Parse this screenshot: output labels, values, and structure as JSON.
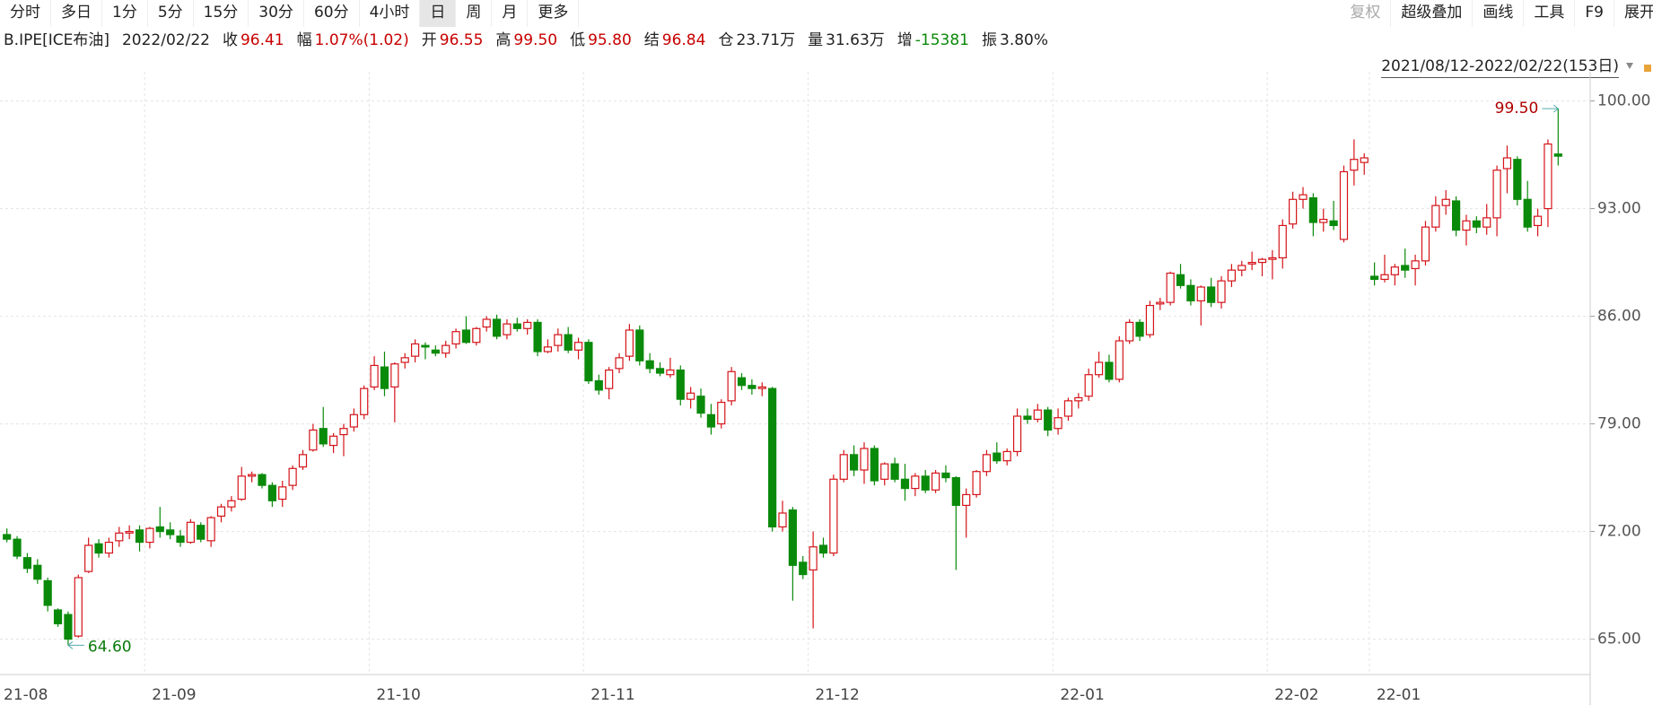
{
  "toolbar": {
    "left": [
      {
        "label": "分时"
      },
      {
        "label": "多日"
      },
      {
        "label": "1分"
      },
      {
        "label": "5分"
      },
      {
        "label": "15分"
      },
      {
        "label": "30分"
      },
      {
        "label": "60分"
      },
      {
        "label": "4小时"
      },
      {
        "label": "日",
        "active": true
      },
      {
        "label": "周"
      },
      {
        "label": "月"
      },
      {
        "label": "更多"
      }
    ],
    "right": [
      {
        "label": "复权",
        "disabled": true
      },
      {
        "label": "超级叠加"
      },
      {
        "label": "画线"
      },
      {
        "label": "工具"
      },
      {
        "label": "F9"
      },
      {
        "label": "展开"
      }
    ]
  },
  "quote": {
    "symbol": "B.IPE[ICE布油]",
    "date": "2022/02/22",
    "fields": [
      {
        "label": "收",
        "value": "96.41",
        "color": "#c80000"
      },
      {
        "label": "幅",
        "value": "1.07%(1.02)",
        "color": "#c80000"
      },
      {
        "label": "开",
        "value": "96.55",
        "color": "#c80000"
      },
      {
        "label": "高",
        "value": "99.50",
        "color": "#c80000"
      },
      {
        "label": "低",
        "value": "95.80",
        "color": "#c80000"
      },
      {
        "label": "结",
        "value": "96.84",
        "color": "#c80000"
      },
      {
        "label": "仓",
        "value": "23.71万",
        "color": "#222222"
      },
      {
        "label": "量",
        "value": "31.63万",
        "color": "#222222"
      },
      {
        "label": "增",
        "value": "-15381",
        "color": "#0a8a0a"
      },
      {
        "label": "振",
        "value": "3.80%",
        "color": "#222222"
      }
    ]
  },
  "range_label": "2021/08/12-2022/02/22(153日)",
  "chart_data": {
    "type": "candlestick",
    "grid": true,
    "up_color": "#d4141a",
    "down_color": "#0a8a0a",
    "ylim": [
      62.7,
      101.2
    ],
    "yticks": [
      {
        "value": 65,
        "label": "65.00"
      },
      {
        "value": 72,
        "label": "72.00"
      },
      {
        "value": 79,
        "label": "79.00"
      },
      {
        "value": 86,
        "label": "86.00"
      },
      {
        "value": 93,
        "label": "93.00"
      },
      {
        "value": 100,
        "label": "100.00"
      }
    ],
    "annotations": [
      {
        "label": "99.50",
        "value": 99.5
      },
      {
        "label": "64.60",
        "value": 64.6
      }
    ],
    "categories": [
      "21-08",
      null,
      null,
      null,
      null,
      null,
      null,
      null,
      null,
      null,
      null,
      null,
      null,
      null,
      "21-09",
      null,
      null,
      null,
      null,
      null,
      null,
      null,
      null,
      null,
      null,
      null,
      null,
      null,
      null,
      null,
      null,
      null,
      null,
      null,
      null,
      null,
      "21-10",
      null,
      null,
      null,
      null,
      null,
      null,
      null,
      null,
      null,
      null,
      null,
      null,
      null,
      null,
      null,
      null,
      null,
      null,
      null,
      null,
      "21-11",
      null,
      null,
      null,
      null,
      null,
      null,
      null,
      null,
      null,
      null,
      null,
      null,
      null,
      null,
      null,
      null,
      null,
      null,
      null,
      null,
      null,
      "21-12",
      null,
      null,
      null,
      null,
      null,
      null,
      null,
      null,
      null,
      null,
      null,
      null,
      null,
      null,
      null,
      null,
      null,
      null,
      null,
      null,
      null,
      null,
      null,
      "22-01",
      null,
      null,
      null,
      null,
      null,
      null,
      null,
      null,
      null,
      null,
      null,
      null,
      null,
      null,
      null,
      null,
      null,
      null,
      null,
      null,
      "22-02",
      null,
      null,
      null,
      null,
      null,
      null,
      null,
      null,
      null,
      "22-01",
      null,
      null,
      null,
      null,
      null,
      null,
      null,
      null,
      null,
      null,
      null,
      null,
      null,
      null,
      null,
      null,
      null,
      null
    ],
    "candles": [
      [
        71.8,
        72.2,
        71.3,
        71.5
      ],
      [
        71.5,
        71.7,
        70.2,
        70.4
      ],
      [
        70.3,
        70.6,
        69.3,
        69.6
      ],
      [
        69.8,
        70.2,
        68.6,
        68.9
      ],
      [
        68.8,
        69.0,
        66.8,
        67.2
      ],
      [
        66.9,
        67.0,
        65.8,
        66.0
      ],
      [
        66.6,
        66.8,
        64.6,
        65.0
      ],
      [
        65.2,
        69.2,
        65.1,
        69.0
      ],
      [
        69.4,
        71.6,
        69.3,
        71.1
      ],
      [
        71.2,
        71.5,
        70.3,
        70.6
      ],
      [
        70.6,
        71.6,
        70.3,
        71.3
      ],
      [
        71.4,
        72.3,
        71.0,
        71.9
      ],
      [
        71.9,
        72.4,
        71.5,
        72.0
      ],
      [
        72.1,
        72.4,
        70.7,
        71.3
      ],
      [
        71.3,
        72.3,
        70.9,
        72.2
      ],
      [
        72.3,
        73.6,
        71.6,
        72.0
      ],
      [
        72.1,
        72.6,
        71.5,
        71.8
      ],
      [
        71.7,
        72.1,
        71.0,
        71.3
      ],
      [
        71.3,
        72.8,
        71.2,
        72.6
      ],
      [
        72.4,
        72.6,
        71.3,
        71.5
      ],
      [
        71.4,
        73.0,
        71.0,
        72.9
      ],
      [
        73.0,
        73.8,
        72.6,
        73.6
      ],
      [
        73.6,
        74.3,
        73.3,
        74.0
      ],
      [
        74.1,
        76.2,
        74.0,
        75.6
      ],
      [
        75.6,
        75.9,
        75.2,
        75.7
      ],
      [
        75.7,
        75.8,
        74.8,
        75.0
      ],
      [
        75.0,
        75.2,
        73.6,
        74.0
      ],
      [
        74.1,
        75.3,
        73.6,
        74.9
      ],
      [
        75.0,
        76.3,
        74.7,
        76.1
      ],
      [
        76.2,
        77.3,
        76.0,
        77.0
      ],
      [
        77.3,
        79.0,
        77.2,
        78.6
      ],
      [
        78.7,
        80.1,
        77.5,
        77.7
      ],
      [
        77.6,
        78.4,
        77.1,
        78.2
      ],
      [
        78.3,
        79.0,
        76.9,
        78.7
      ],
      [
        78.8,
        80.0,
        78.5,
        79.6
      ],
      [
        79.6,
        81.5,
        79.3,
        81.3
      ],
      [
        81.4,
        83.4,
        81.2,
        82.8
      ],
      [
        82.7,
        83.7,
        80.8,
        81.3
      ],
      [
        81.4,
        83.0,
        79.1,
        82.9
      ],
      [
        83.0,
        83.6,
        82.6,
        83.3
      ],
      [
        83.4,
        84.5,
        83.0,
        84.2
      ],
      [
        84.1,
        84.3,
        83.2,
        84.0
      ],
      [
        83.8,
        84.1,
        83.4,
        83.6
      ],
      [
        83.6,
        84.4,
        83.3,
        84.1
      ],
      [
        84.2,
        85.2,
        83.9,
        85.0
      ],
      [
        85.1,
        86.0,
        84.2,
        84.3
      ],
      [
        84.3,
        85.3,
        84.1,
        85.2
      ],
      [
        85.3,
        86.0,
        85.0,
        85.8
      ],
      [
        85.8,
        86.1,
        84.5,
        84.7
      ],
      [
        84.8,
        85.8,
        84.5,
        85.5
      ],
      [
        85.5,
        85.9,
        85.0,
        85.2
      ],
      [
        85.2,
        85.8,
        84.8,
        85.6
      ],
      [
        85.6,
        85.8,
        83.4,
        83.7
      ],
      [
        83.7,
        84.5,
        83.6,
        84.0
      ],
      [
        84.1,
        85.2,
        83.7,
        84.8
      ],
      [
        84.8,
        85.3,
        83.6,
        83.8
      ],
      [
        83.8,
        84.6,
        83.2,
        84.3
      ],
      [
        84.3,
        84.5,
        81.6,
        81.8
      ],
      [
        81.8,
        82.2,
        80.9,
        81.2
      ],
      [
        81.3,
        82.7,
        80.6,
        82.5
      ],
      [
        82.6,
        83.6,
        82.3,
        83.3
      ],
      [
        83.4,
        85.5,
        83.1,
        85.1
      ],
      [
        85.1,
        85.4,
        82.8,
        83.1
      ],
      [
        83.1,
        83.6,
        82.3,
        82.6
      ],
      [
        82.6,
        83.0,
        82.1,
        82.3
      ],
      [
        82.2,
        83.3,
        82.0,
        82.5
      ],
      [
        82.5,
        82.8,
        80.2,
        80.6
      ],
      [
        80.6,
        81.4,
        80.0,
        81.0
      ],
      [
        80.8,
        81.3,
        79.4,
        79.7
      ],
      [
        79.6,
        80.3,
        78.3,
        78.8
      ],
      [
        79.0,
        80.6,
        78.7,
        80.4
      ],
      [
        80.5,
        82.7,
        80.2,
        82.4
      ],
      [
        82.0,
        82.3,
        81.2,
        81.5
      ],
      [
        81.5,
        81.9,
        80.9,
        81.3
      ],
      [
        81.3,
        81.7,
        80.8,
        81.4
      ],
      [
        81.3,
        81.4,
        72.0,
        72.3
      ],
      [
        72.3,
        74.0,
        72.0,
        73.2
      ],
      [
        73.4,
        73.6,
        67.5,
        69.8
      ],
      [
        70.0,
        70.4,
        68.9,
        69.2
      ],
      [
        69.5,
        72.0,
        65.7,
        71.0
      ],
      [
        71.1,
        71.6,
        70.3,
        70.6
      ],
      [
        70.6,
        75.7,
        70.4,
        75.4
      ],
      [
        75.4,
        77.3,
        75.2,
        77.0
      ],
      [
        77.0,
        77.6,
        75.6,
        76.0
      ],
      [
        76.0,
        77.8,
        75.1,
        77.4
      ],
      [
        77.4,
        77.6,
        75.0,
        75.3
      ],
      [
        75.4,
        76.5,
        75.0,
        76.4
      ],
      [
        76.4,
        76.8,
        75.2,
        75.4
      ],
      [
        75.4,
        76.4,
        74.0,
        74.8
      ],
      [
        74.8,
        75.8,
        74.3,
        75.6
      ],
      [
        75.6,
        76.0,
        74.5,
        74.7
      ],
      [
        74.7,
        76.0,
        74.5,
        75.8
      ],
      [
        75.8,
        76.3,
        75.2,
        75.5
      ],
      [
        75.5,
        75.6,
        69.5,
        73.7
      ],
      [
        73.7,
        74.8,
        71.6,
        74.4
      ],
      [
        74.4,
        76.0,
        74.2,
        75.9
      ],
      [
        75.9,
        77.3,
        75.6,
        77.0
      ],
      [
        77.1,
        77.8,
        76.4,
        76.6
      ],
      [
        76.6,
        77.4,
        76.3,
        77.2
      ],
      [
        77.2,
        80.0,
        76.9,
        79.5
      ],
      [
        79.5,
        80.0,
        79.0,
        79.3
      ],
      [
        79.3,
        80.3,
        79.1,
        79.9
      ],
      [
        79.9,
        80.1,
        78.2,
        78.6
      ],
      [
        78.7,
        80.0,
        78.3,
        79.4
      ],
      [
        79.5,
        80.7,
        79.2,
        80.5
      ],
      [
        80.5,
        81.0,
        80.0,
        80.7
      ],
      [
        80.8,
        82.6,
        80.5,
        82.2
      ],
      [
        82.2,
        83.7,
        82.0,
        83.0
      ],
      [
        83.0,
        83.5,
        81.7,
        81.9
      ],
      [
        81.9,
        84.7,
        81.7,
        84.4
      ],
      [
        84.4,
        85.8,
        84.2,
        85.6
      ],
      [
        85.6,
        85.8,
        84.4,
        84.7
      ],
      [
        84.8,
        87.0,
        84.6,
        86.7
      ],
      [
        86.8,
        87.2,
        86.4,
        86.9
      ],
      [
        86.9,
        88.9,
        86.7,
        88.8
      ],
      [
        88.7,
        89.4,
        87.8,
        88.0
      ],
      [
        88.0,
        88.4,
        86.7,
        87.0
      ],
      [
        87.0,
        88.0,
        85.4,
        87.9
      ],
      [
        87.9,
        88.5,
        86.6,
        86.9
      ],
      [
        86.9,
        88.6,
        86.5,
        88.3
      ],
      [
        88.3,
        89.4,
        87.9,
        89.0
      ],
      [
        89.0,
        89.6,
        88.6,
        89.3
      ],
      [
        89.4,
        90.2,
        89.0,
        89.5
      ],
      [
        89.5,
        89.8,
        88.6,
        89.7
      ],
      [
        89.7,
        90.3,
        88.4,
        89.8
      ],
      [
        89.8,
        92.3,
        89.1,
        91.9
      ],
      [
        92.0,
        94.1,
        91.7,
        93.6
      ],
      [
        93.6,
        94.4,
        93.0,
        93.9
      ],
      [
        93.7,
        94.0,
        91.2,
        92.1
      ],
      [
        92.1,
        93.0,
        91.5,
        92.3
      ],
      [
        92.2,
        93.5,
        91.6,
        91.9
      ],
      [
        91.0,
        95.8,
        90.8,
        95.4
      ],
      [
        95.5,
        97.5,
        94.5,
        96.2
      ],
      [
        96.0,
        96.6,
        95.2,
        96.3
      ],
      [
        88.6,
        89.5,
        88.0,
        88.4
      ],
      [
        88.4,
        90.0,
        88.2,
        88.7
      ],
      [
        88.7,
        89.4,
        88.0,
        89.2
      ],
      [
        89.3,
        90.4,
        88.5,
        89.0
      ],
      [
        89.1,
        90.0,
        88.0,
        89.6
      ],
      [
        89.6,
        92.2,
        89.3,
        91.8
      ],
      [
        91.8,
        93.8,
        91.5,
        93.2
      ],
      [
        93.2,
        94.2,
        92.6,
        93.6
      ],
      [
        93.5,
        93.8,
        91.2,
        91.6
      ],
      [
        91.6,
        92.6,
        90.6,
        92.2
      ],
      [
        92.2,
        92.5,
        91.4,
        91.8
      ],
      [
        91.8,
        93.3,
        91.3,
        92.4
      ],
      [
        92.4,
        95.8,
        91.2,
        95.5
      ],
      [
        95.6,
        97.1,
        94.0,
        96.3
      ],
      [
        96.2,
        96.4,
        93.2,
        93.6
      ],
      [
        93.6,
        94.8,
        91.5,
        91.8
      ],
      [
        91.9,
        93.0,
        91.2,
        92.5
      ],
      [
        93.0,
        97.5,
        91.8,
        97.2
      ],
      [
        96.55,
        99.5,
        95.8,
        96.41
      ]
    ]
  }
}
